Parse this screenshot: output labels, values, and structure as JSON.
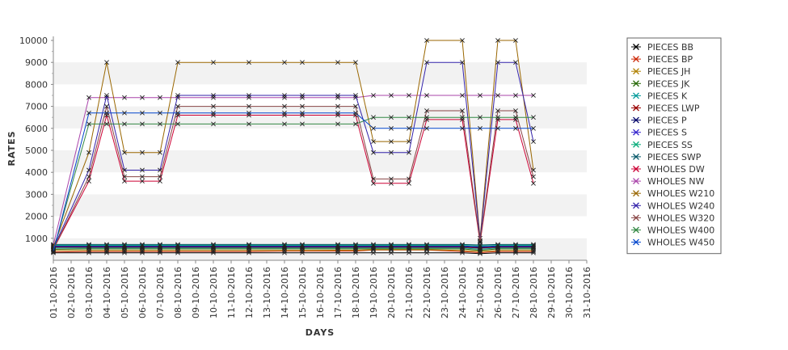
{
  "chart_data": {
    "type": "line",
    "xlabel": "DAYS",
    "ylabel": "RATES",
    "ylim": [
      0,
      10000
    ],
    "yticks": [
      "1000",
      "2000",
      "3000",
      "4000",
      "5000",
      "6000",
      "7000",
      "8000",
      "9000",
      "10000"
    ],
    "categories": [
      "01-10-2016",
      "02-10-2016",
      "03-10-2016",
      "04-10-2016",
      "05-10-2016",
      "06-10-2016",
      "07-10-2016",
      "08-10-2016",
      "09-10-2016",
      "10-10-2016",
      "11-10-2016",
      "12-10-2016",
      "13-10-2016",
      "14-10-2016",
      "15-10-2016",
      "16-10-2016",
      "17-10-2016",
      "18-10-2016",
      "19-10-2016",
      "20-10-2016",
      "21-10-2016",
      "22-10-2016",
      "23-10-2016",
      "24-10-2016",
      "25-10-2016",
      "26-10-2016",
      "27-10-2016",
      "28-10-2016",
      "29-10-2016",
      "30-10-2016",
      "31-10-2016"
    ],
    "grid": "alternating horizontal bands",
    "legend_position": "right",
    "series": [
      {
        "name": "PIECES BB",
        "color": "#000000",
        "values": [
          340,
          null,
          340,
          340,
          340,
          340,
          340,
          340,
          null,
          340,
          null,
          340,
          null,
          340,
          340,
          null,
          340,
          340,
          340,
          340,
          340,
          340,
          null,
          340,
          300,
          340,
          340,
          340,
          null,
          null,
          null
        ]
      },
      {
        "name": "PIECES BP",
        "color": "#cc2200",
        "values": [
          380,
          null,
          400,
          400,
          400,
          400,
          400,
          400,
          null,
          400,
          null,
          400,
          null,
          420,
          420,
          null,
          420,
          420,
          470,
          470,
          470,
          470,
          null,
          400,
          350,
          400,
          400,
          400,
          null,
          null,
          null
        ]
      },
      {
        "name": "PIECES JH",
        "color": "#b08000",
        "values": [
          450,
          null,
          450,
          450,
          450,
          450,
          450,
          450,
          null,
          450,
          null,
          450,
          null,
          450,
          450,
          null,
          460,
          460,
          480,
          480,
          480,
          480,
          null,
          450,
          400,
          450,
          450,
          450,
          null,
          null,
          null
        ]
      },
      {
        "name": "PIECES JK",
        "color": "#226600",
        "values": [
          500,
          null,
          520,
          520,
          520,
          520,
          520,
          520,
          null,
          520,
          null,
          520,
          null,
          520,
          520,
          null,
          520,
          520,
          520,
          520,
          520,
          520,
          null,
          520,
          450,
          520,
          520,
          520,
          null,
          null,
          null
        ]
      },
      {
        "name": "PIECES K",
        "color": "#009999",
        "values": [
          550,
          null,
          560,
          560,
          560,
          560,
          560,
          560,
          null,
          560,
          null,
          560,
          null,
          560,
          560,
          null,
          560,
          560,
          560,
          560,
          560,
          560,
          null,
          560,
          500,
          560,
          560,
          560,
          null,
          null,
          null
        ]
      },
      {
        "name": "PIECES LWP",
        "color": "#990000",
        "values": [
          600,
          null,
          600,
          600,
          600,
          600,
          600,
          600,
          null,
          600,
          null,
          600,
          null,
          600,
          600,
          null,
          600,
          600,
          600,
          600,
          600,
          600,
          null,
          600,
          550,
          600,
          600,
          600,
          null,
          null,
          null
        ]
      },
      {
        "name": "PIECES P",
        "color": "#000066",
        "values": [
          620,
          null,
          620,
          620,
          620,
          620,
          620,
          620,
          null,
          620,
          null,
          620,
          null,
          620,
          620,
          null,
          620,
          620,
          620,
          620,
          620,
          620,
          null,
          620,
          580,
          620,
          620,
          620,
          null,
          null,
          null
        ]
      },
      {
        "name": "PIECES S",
        "color": "#3322cc",
        "values": [
          650,
          null,
          650,
          650,
          650,
          650,
          650,
          650,
          null,
          650,
          null,
          650,
          null,
          650,
          650,
          null,
          650,
          650,
          650,
          650,
          650,
          650,
          null,
          650,
          620,
          650,
          650,
          650,
          null,
          null,
          null
        ]
      },
      {
        "name": "PIECES SS",
        "color": "#00aa77",
        "values": [
          680,
          null,
          680,
          680,
          680,
          680,
          680,
          680,
          null,
          680,
          null,
          680,
          null,
          680,
          680,
          null,
          680,
          680,
          680,
          680,
          680,
          680,
          null,
          680,
          650,
          680,
          680,
          680,
          null,
          null,
          null
        ]
      },
      {
        "name": "PIECES SWP",
        "color": "#005566",
        "values": [
          720,
          null,
          720,
          720,
          720,
          720,
          720,
          720,
          null,
          720,
          null,
          720,
          null,
          720,
          720,
          null,
          720,
          720,
          720,
          720,
          720,
          720,
          null,
          720,
          700,
          720,
          720,
          720,
          null,
          null,
          null
        ]
      },
      {
        "name": "WHOLES DW",
        "color": "#cc0033",
        "values": [
          500,
          null,
          3600,
          6600,
          3600,
          3600,
          3600,
          6600,
          null,
          6600,
          null,
          6600,
          null,
          6600,
          6600,
          null,
          6600,
          6600,
          3500,
          3500,
          3500,
          6400,
          null,
          6400,
          800,
          6400,
          6400,
          3500,
          null,
          null,
          null
        ]
      },
      {
        "name": "WHOLES NW",
        "color": "#aa44aa",
        "values": [
          700,
          null,
          7400,
          7400,
          7400,
          7400,
          7400,
          7400,
          null,
          7400,
          null,
          7400,
          null,
          7400,
          7400,
          null,
          7400,
          7400,
          7500,
          7500,
          7500,
          7500,
          null,
          7500,
          7500,
          7500,
          7500,
          7500,
          null,
          null,
          null
        ]
      },
      {
        "name": "WHOLES W210",
        "color": "#996600",
        "values": [
          600,
          null,
          4900,
          9000,
          4900,
          4900,
          4900,
          9000,
          null,
          9000,
          null,
          9000,
          null,
          9000,
          9000,
          null,
          9000,
          9000,
          5400,
          5400,
          5400,
          10000,
          null,
          10000,
          1000,
          10000,
          10000,
          4100,
          null,
          null,
          null
        ]
      },
      {
        "name": "WHOLES W240",
        "color": "#3322aa",
        "values": [
          550,
          null,
          4100,
          7500,
          4100,
          4100,
          4100,
          7500,
          null,
          7500,
          null,
          7500,
          null,
          7500,
          7500,
          null,
          7500,
          7500,
          4900,
          4900,
          4900,
          9000,
          null,
          9000,
          900,
          9000,
          9000,
          5400,
          null,
          null,
          null
        ]
      },
      {
        "name": "WHOLES W320",
        "color": "#884444",
        "values": [
          500,
          null,
          3800,
          7000,
          3800,
          3800,
          3800,
          7000,
          null,
          7000,
          null,
          7000,
          null,
          7000,
          7000,
          null,
          7000,
          7000,
          3700,
          3700,
          3700,
          6800,
          null,
          6800,
          850,
          6800,
          6800,
          3800,
          null,
          null,
          null
        ]
      },
      {
        "name": "WHOLES W400",
        "color": "#338844",
        "values": [
          450,
          null,
          6200,
          6200,
          6200,
          6200,
          6200,
          6200,
          null,
          6200,
          null,
          6200,
          null,
          6200,
          6200,
          null,
          6200,
          6200,
          6500,
          6500,
          6500,
          6500,
          null,
          6500,
          6500,
          6500,
          6500,
          6500,
          null,
          null,
          null
        ]
      },
      {
        "name": "WHOLES W450",
        "color": "#0044cc",
        "values": [
          400,
          null,
          6700,
          6700,
          6700,
          6700,
          6700,
          6700,
          null,
          6700,
          null,
          6700,
          null,
          6700,
          6700,
          null,
          6700,
          6700,
          6000,
          6000,
          6000,
          6000,
          null,
          6000,
          6000,
          6000,
          6000,
          6000,
          null,
          null,
          null
        ]
      }
    ]
  }
}
